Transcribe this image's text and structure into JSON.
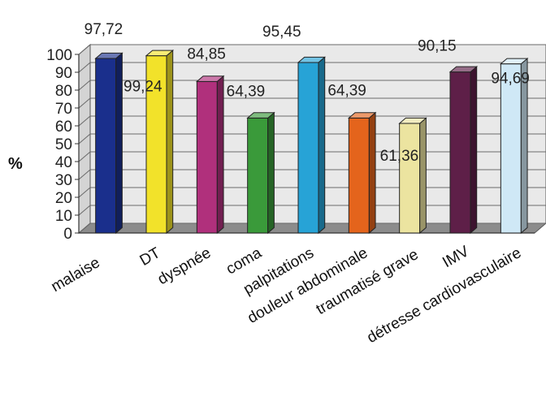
{
  "chart_data": {
    "type": "bar",
    "title": "",
    "xlabel": "",
    "ylabel": "%",
    "ylim": [
      0,
      100
    ],
    "yticks": [
      0,
      10,
      20,
      30,
      40,
      50,
      60,
      70,
      80,
      90,
      100
    ],
    "grid": true,
    "style": "3d",
    "categories": [
      "malaise",
      "DT",
      "dyspnée",
      "coma",
      "palpitations",
      "douleur abdominale",
      "traumatisé grave",
      "IMV",
      "détresse cardiovasculaire"
    ],
    "values": [
      97.72,
      99.24,
      84.85,
      64.39,
      95.45,
      64.39,
      61.36,
      90.15,
      94.69
    ],
    "value_labels": [
      "97,72",
      "99,24",
      "84,85",
      "64,39",
      "95,45",
      "64,39",
      "61,36",
      "90,15",
      "94,69"
    ],
    "colors": [
      "#1a2f8c",
      "#f2e22a",
      "#b0307c",
      "#3a9a3a",
      "#27a3d6",
      "#e4641c",
      "#ece4a0",
      "#5e1f48",
      "#cfe8f6"
    ]
  }
}
